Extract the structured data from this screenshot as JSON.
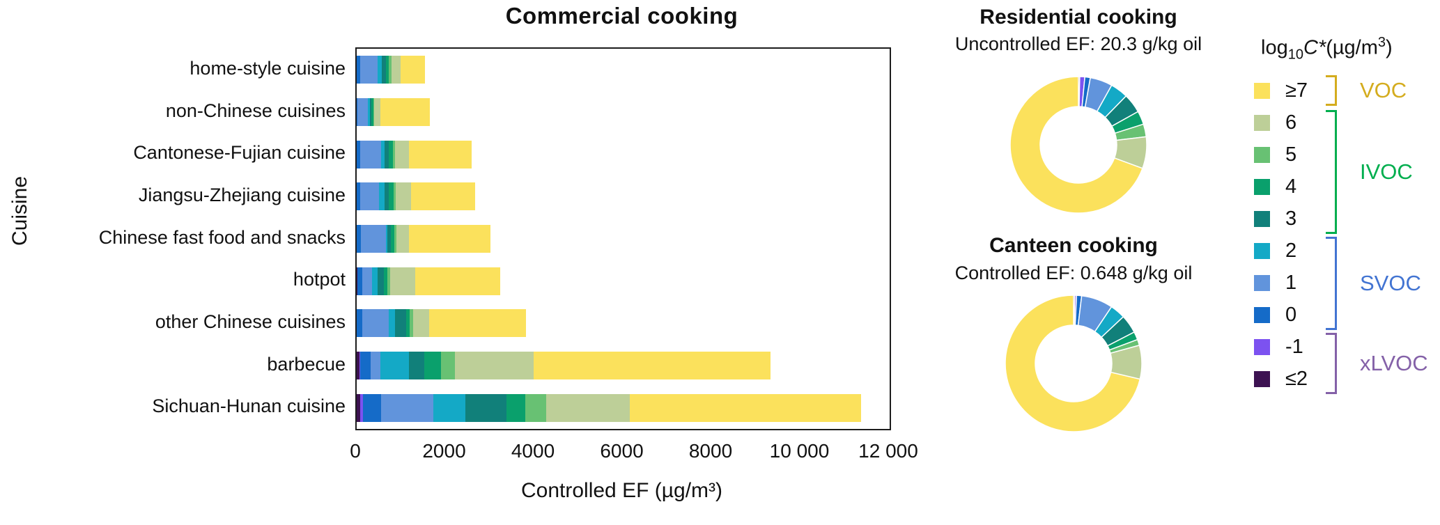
{
  "figure": {
    "background": "#ffffff"
  },
  "palette": {
    "bins": [
      "≤2",
      "-1",
      "0",
      "1",
      "2",
      "3",
      "4",
      "5",
      "6",
      "≥7"
    ],
    "colors": {
      "≤2": "#3D1252",
      "-1": "#7C52F0",
      "0": "#156BC8",
      "1": "#6194DC",
      "2": "#14A9C6",
      "3": "#11807A",
      "4": "#0AA06C",
      "5": "#68C173",
      "6": "#BDCF98",
      "≥7": "#FBE15C"
    }
  },
  "chart_data": [
    {
      "id": "commercial",
      "type": "bar",
      "orientation": "horizontal",
      "stacked": true,
      "title": "Commercial cooking",
      "xlabel": "Controlled EF (µg/m³)",
      "ylabel": "Cuisine",
      "xlim": [
        0,
        12000
      ],
      "xticks": [
        0,
        2000,
        4000,
        6000,
        8000,
        10000,
        12000
      ],
      "xtick_labels": [
        "0",
        "2000",
        "4000",
        "6000",
        "8000",
        "10 000",
        "12 000"
      ],
      "grid": false,
      "categories": [
        "home-style cuisine",
        "non-Chinese cuisines",
        "Cantonese-Fujian cuisine",
        "Jiangsu-Zhejiang cuisine",
        "Chinese fast food and snacks",
        "hotpot",
        "other Chinese cuisines",
        "barbecue",
        "Sichuan-Hunan cuisine"
      ],
      "series": [
        {
          "name": "≤2",
          "values": [
            0,
            0,
            0,
            0,
            0,
            10,
            0,
            60,
            75
          ]
        },
        {
          "name": "-1",
          "values": [
            0,
            0,
            0,
            0,
            0,
            0,
            0,
            20,
            65
          ]
        },
        {
          "name": "0",
          "values": [
            75,
            20,
            85,
            85,
            100,
            115,
            125,
            230,
            410
          ]
        },
        {
          "name": "1",
          "values": [
            400,
            230,
            460,
            420,
            560,
            220,
            595,
            220,
            1170
          ]
        },
        {
          "name": "2",
          "values": [
            90,
            45,
            80,
            130,
            30,
            130,
            145,
            645,
            720
          ]
        },
        {
          "name": "3",
          "values": [
            90,
            40,
            100,
            90,
            75,
            145,
            250,
            340,
            940
          ]
        },
        {
          "name": "4",
          "values": [
            65,
            35,
            85,
            105,
            75,
            75,
            85,
            380,
            420
          ]
        },
        {
          "name": "5",
          "values": [
            60,
            30,
            60,
            50,
            50,
            60,
            75,
            310,
            470
          ]
        },
        {
          "name": "6",
          "values": [
            215,
            140,
            315,
            340,
            290,
            560,
            350,
            1780,
            1880
          ]
        },
        {
          "name": "≥7",
          "values": [
            545,
            1110,
            1400,
            1450,
            1840,
            1925,
            2195,
            5330,
            5210
          ]
        }
      ],
      "totals": [
        1540,
        1650,
        2585,
        2670,
        3020,
        3240,
        3820,
        9315,
        11360
      ]
    },
    {
      "id": "residential",
      "type": "pie",
      "donut": true,
      "title": "Residential cooking",
      "subtitle": "Uncontrolled EF: 20.3 g/kg oil",
      "labels": [
        "≤2",
        "-1",
        "0",
        "1",
        "2",
        "3",
        "4",
        "5",
        "6",
        "≥7"
      ],
      "values_percent": [
        0.3,
        1.2,
        1.3,
        5.3,
        4.2,
        4.6,
        3.2,
        3.0,
        7.5,
        69.4
      ]
    },
    {
      "id": "canteen",
      "type": "pie",
      "donut": true,
      "title": "Canteen cooking",
      "subtitle": "Controlled EF: 0.648 g/kg oil",
      "labels": [
        "≤2",
        "-1",
        "0",
        "1",
        "2",
        "3",
        "4",
        "5",
        "6",
        "≥7"
      ],
      "values_percent": [
        0.3,
        0.4,
        1.2,
        7.5,
        3.6,
        4.4,
        1.9,
        1.4,
        8.0,
        71.3
      ]
    }
  ],
  "legend": {
    "title": {
      "log": "log",
      "sub": "10",
      "var": "C*",
      "unit_pre": "(µg/m",
      "sup": "3",
      "unit_post": ")"
    },
    "items": [
      {
        "label": "≥7",
        "color": "#FBE15C"
      },
      {
        "label": "6",
        "color": "#BDCF98"
      },
      {
        "label": "5",
        "color": "#68C173"
      },
      {
        "label": "4",
        "color": "#0AA06C"
      },
      {
        "label": "3",
        "color": "#11807A"
      },
      {
        "label": "2",
        "color": "#14A9C6"
      },
      {
        "label": "1",
        "color": "#6194DC"
      },
      {
        "label": "0",
        "color": "#156BC8"
      },
      {
        "label": "-1",
        "color": "#7C52F0"
      },
      {
        "label": "≤2",
        "color": "#3D1252"
      }
    ],
    "groups": [
      {
        "label": "VOC",
        "color": "#D4AC1E",
        "bins": [
          "≥7"
        ]
      },
      {
        "label": "IVOC",
        "color": "#00AE4E",
        "bins": [
          "6",
          "5",
          "4",
          "3"
        ]
      },
      {
        "label": "SVOC",
        "color": "#4274D2",
        "bins": [
          "2",
          "1",
          "0"
        ]
      },
      {
        "label": "xLVOC",
        "color": "#8461A8",
        "bins": [
          "-1",
          "≤2"
        ]
      }
    ]
  }
}
